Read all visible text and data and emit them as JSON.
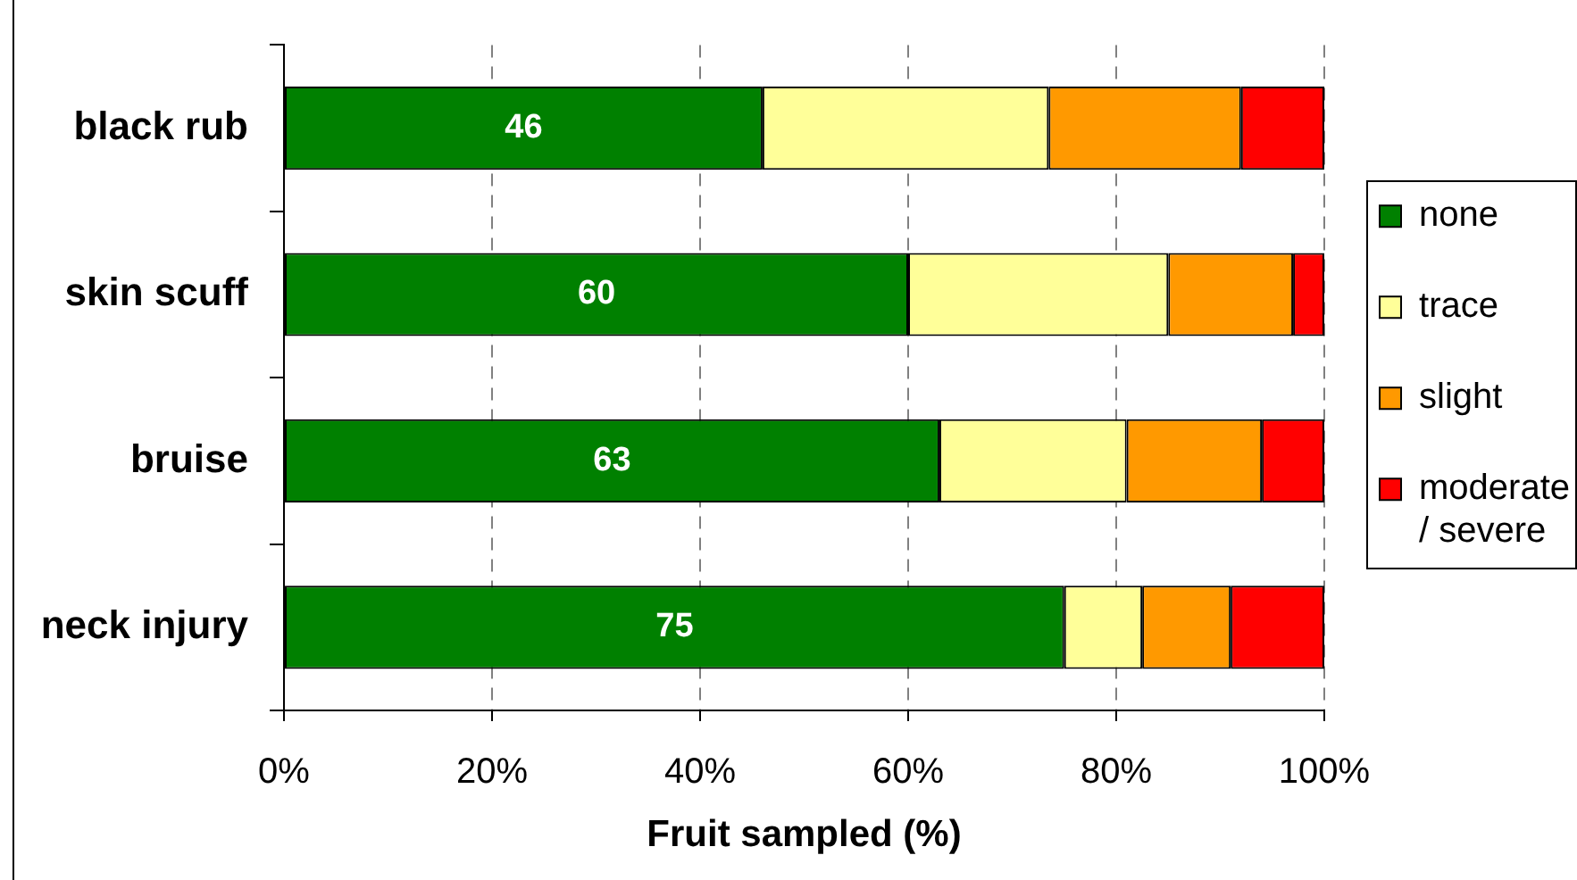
{
  "chart_data": {
    "type": "bar",
    "orientation": "horizontal",
    "stacked": true,
    "categories": [
      "black rub",
      "skin scuff",
      "bruise",
      "neck injury"
    ],
    "series": [
      {
        "name": "none",
        "color": "#008000",
        "values": [
          46,
          60,
          63,
          75
        ],
        "value_labels": [
          "46",
          "60",
          "63",
          "75"
        ]
      },
      {
        "name": "trace",
        "color": "#ffff99",
        "values": [
          27.5,
          25,
          18,
          7.5
        ]
      },
      {
        "name": "slight",
        "color": "#ff9900",
        "values": [
          18.5,
          12,
          13,
          8.5
        ]
      },
      {
        "name": "moderate / severe",
        "color": "#ff0000",
        "values": [
          8,
          3,
          6,
          9
        ]
      }
    ],
    "xlabel": "Fruit sampled (%)",
    "xlim": [
      0,
      100
    ],
    "xticks": [
      {
        "value": 0,
        "label": "0%"
      },
      {
        "value": 20,
        "label": "20%"
      },
      {
        "value": 40,
        "label": "40%"
      },
      {
        "value": 60,
        "label": "60%"
      },
      {
        "value": 80,
        "label": "80%"
      },
      {
        "value": 100,
        "label": "100%"
      }
    ],
    "grid": "x",
    "legend": "right"
  }
}
